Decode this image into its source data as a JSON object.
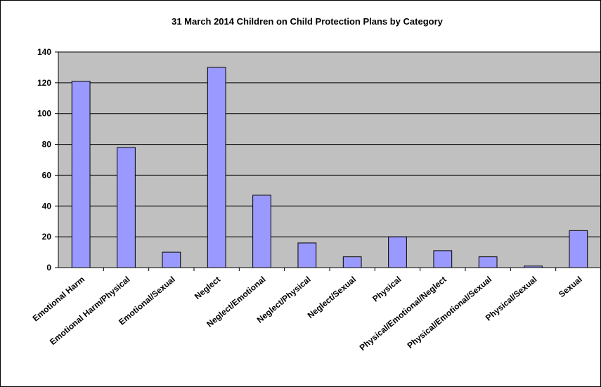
{
  "chart_data": {
    "type": "bar",
    "title": "31 March 2014 Children on Child Protection Plans by Category",
    "xlabel": "",
    "ylabel": "",
    "ylim": [
      0,
      140
    ],
    "yticks": [
      0,
      20,
      40,
      60,
      80,
      100,
      120,
      140
    ],
    "grid": true,
    "legend": "none",
    "categories": [
      "Emotional Harm",
      "Emotional Harm/Physical",
      "Emotional/Sexual",
      "Neglect",
      "Neglect/Emotional",
      "Neglect/Physical",
      "Neglect/Sexual",
      "Physical",
      "Physical/Emotional/Neglect",
      "Physical/Emotional/Sexual",
      "Physical/Sexual",
      "Sexual"
    ],
    "values": [
      121,
      78,
      10,
      130,
      47,
      16,
      7,
      20,
      11,
      7,
      1,
      24
    ],
    "colors": {
      "plot_background": "#c0c0c0",
      "bar_fill": "#9999ff",
      "bar_stroke": "#000000",
      "gridline": "#000000"
    }
  }
}
